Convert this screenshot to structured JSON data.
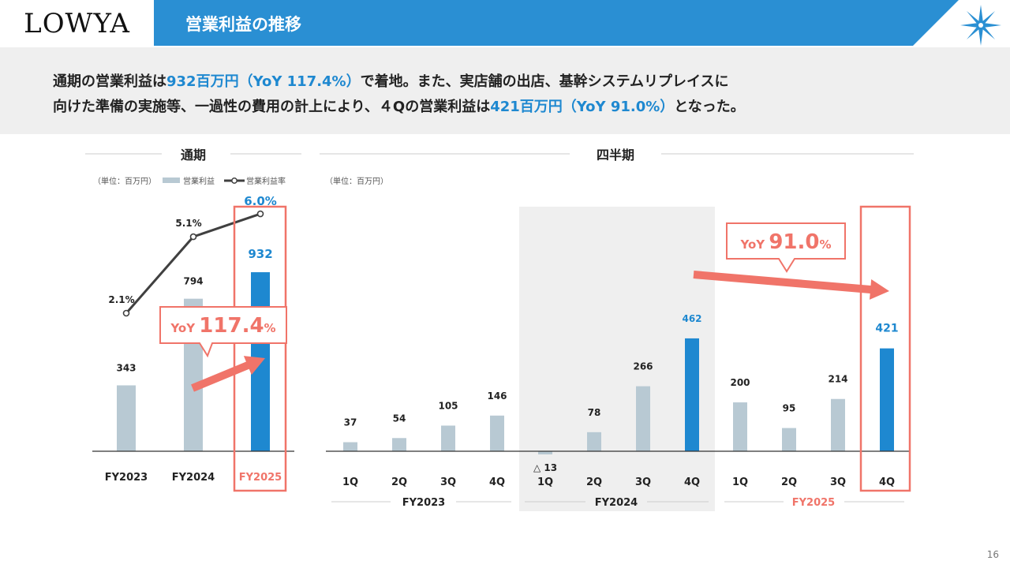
{
  "header": {
    "logo_text": "LOWYA",
    "title": "営業利益の推移",
    "accent_color": "#2a8fd3",
    "brand_color": "#1e88d0"
  },
  "summary": {
    "line1": [
      "通期の営業利益は",
      "932百万円（YoY 117.4%）",
      "で着地。また、実店舗の出店、基幹システムリプレイスに"
    ],
    "line2": [
      "向けた準備の実施等、一過性の費用の計上により、４Qの営業利益は",
      "421百万円（YoY 91.0%）",
      "となった。"
    ]
  },
  "chart_data": [
    {
      "type": "bar",
      "title": "通期",
      "unit_label": "（単位：百万円）",
      "legend": [
        "営業利益",
        "営業利益率"
      ],
      "categories": [
        "FY2023",
        "FY2024",
        "FY2025"
      ],
      "series": [
        {
          "name": "営業利益",
          "type": "bar",
          "values": [
            343,
            794,
            932
          ],
          "labels": [
            "343",
            "794",
            "932"
          ]
        },
        {
          "name": "営業利益率",
          "type": "line",
          "values": [
            2.1,
            5.1,
            6.0
          ],
          "labels": [
            "2.1%",
            "5.1%",
            "6.0%"
          ]
        }
      ],
      "highlight": "FY2025",
      "callout": {
        "prefix": "YoY",
        "value": "117.4",
        "suffix": "%"
      }
    },
    {
      "type": "bar",
      "title": "四半期",
      "unit_label": "（単位：百万円）",
      "groups": [
        {
          "name": "FY2023",
          "quarters": [
            "1Q",
            "2Q",
            "3Q",
            "4Q"
          ],
          "values": [
            37,
            54,
            105,
            146
          ],
          "labels": [
            "37",
            "54",
            "105",
            "146"
          ]
        },
        {
          "name": "FY2024",
          "quarters": [
            "1Q",
            "2Q",
            "3Q",
            "4Q"
          ],
          "values": [
            -13,
            78,
            266,
            462
          ],
          "labels": [
            "△ 13",
            "78",
            "266",
            "462"
          ]
        },
        {
          "name": "FY2025",
          "quarters": [
            "1Q",
            "2Q",
            "3Q",
            "4Q"
          ],
          "values": [
            200,
            95,
            214,
            421
          ],
          "labels": [
            "200",
            "95",
            "214",
            "421"
          ]
        }
      ],
      "highlight": "FY2025 4Q",
      "callout": {
        "prefix": "YoY",
        "value": "91.0",
        "suffix": "%"
      }
    }
  ],
  "colors": {
    "bar_default": "#b8c9d3",
    "bar_highlight": "#1e88d0",
    "line": "#404040",
    "callout": "#f07469",
    "shade": "#efefef"
  },
  "page_number": "16"
}
